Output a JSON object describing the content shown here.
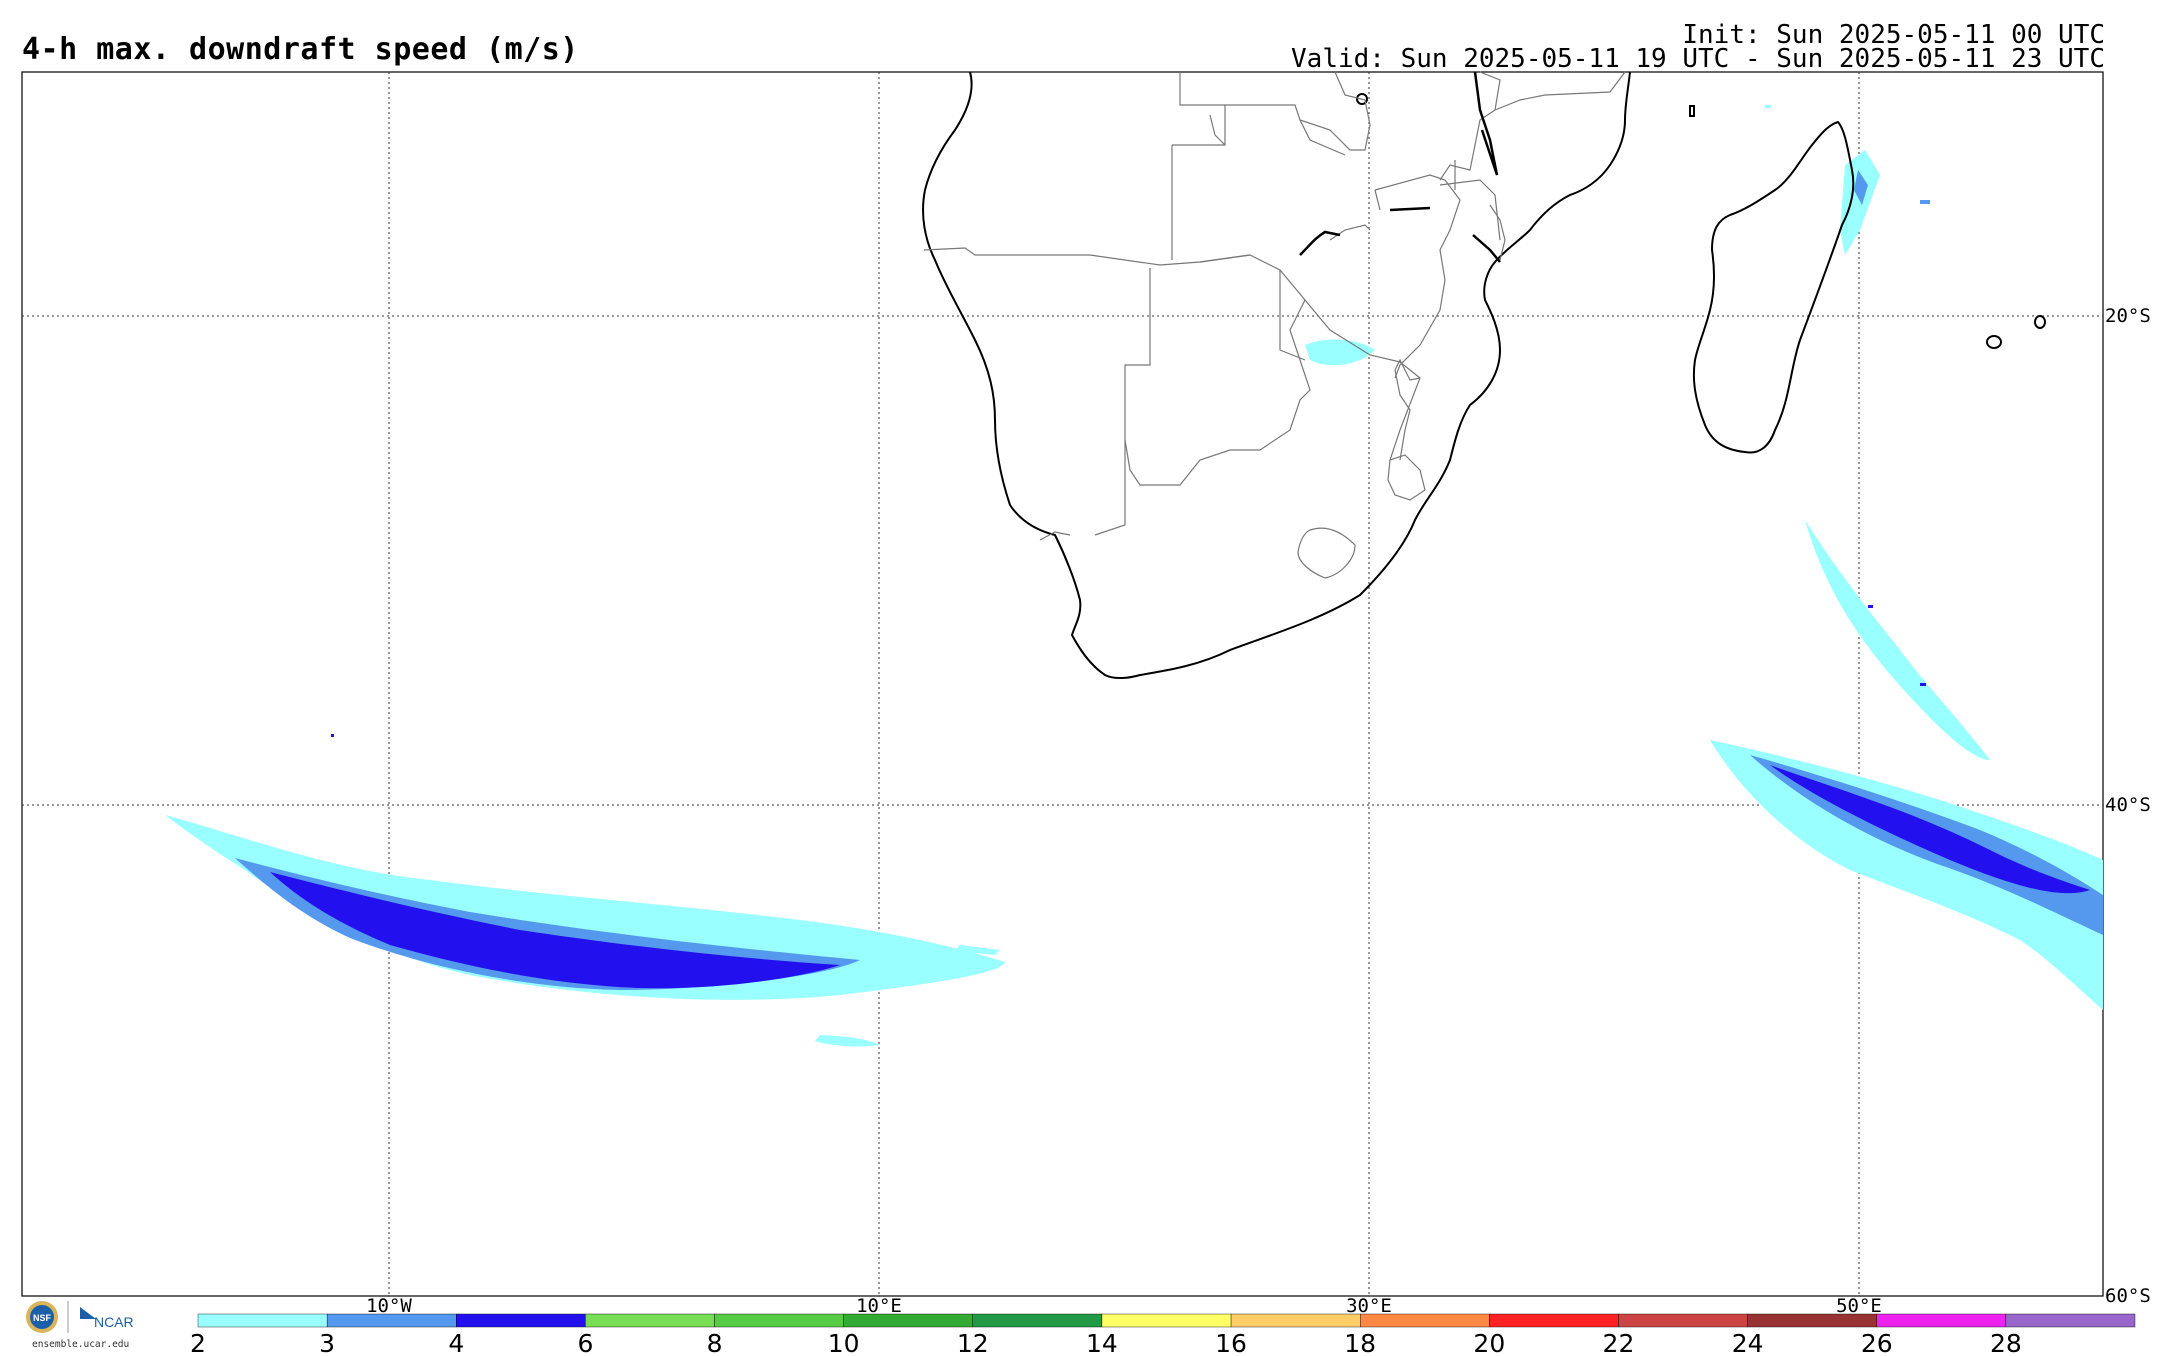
{
  "header": {
    "title": "4-h max. downdraft speed (m/s)",
    "init": "Init: Sun 2025-05-11 00 UTC",
    "valid": "Valid: Sun 2025-05-11 19 UTC - Sun 2025-05-11 23 UTC"
  },
  "map": {
    "lat_labels": [
      "20°S",
      "40°S",
      "60°S"
    ],
    "lon_labels": [
      "10°W",
      "10°E",
      "30°E",
      "50°E"
    ]
  },
  "colorbar": {
    "ticks": [
      "2",
      "3",
      "4",
      "6",
      "8",
      "10",
      "12",
      "14",
      "16",
      "18",
      "20",
      "22",
      "24",
      "26",
      "28"
    ],
    "colors": [
      "#99ffff",
      "#5599ee",
      "#2211ee",
      "#77dd55",
      "#55cc44",
      "#33aa33",
      "#229944",
      "#ffff66",
      "#ffcc66",
      "#ff8844",
      "#ff2222",
      "#cc4444",
      "#993333",
      "#ee22ee",
      "#9966cc"
    ]
  },
  "footer": {
    "logo_nsf": "NSF",
    "logo_ncar": "NCAR",
    "site": "ensemble.ucar.edu"
  }
}
